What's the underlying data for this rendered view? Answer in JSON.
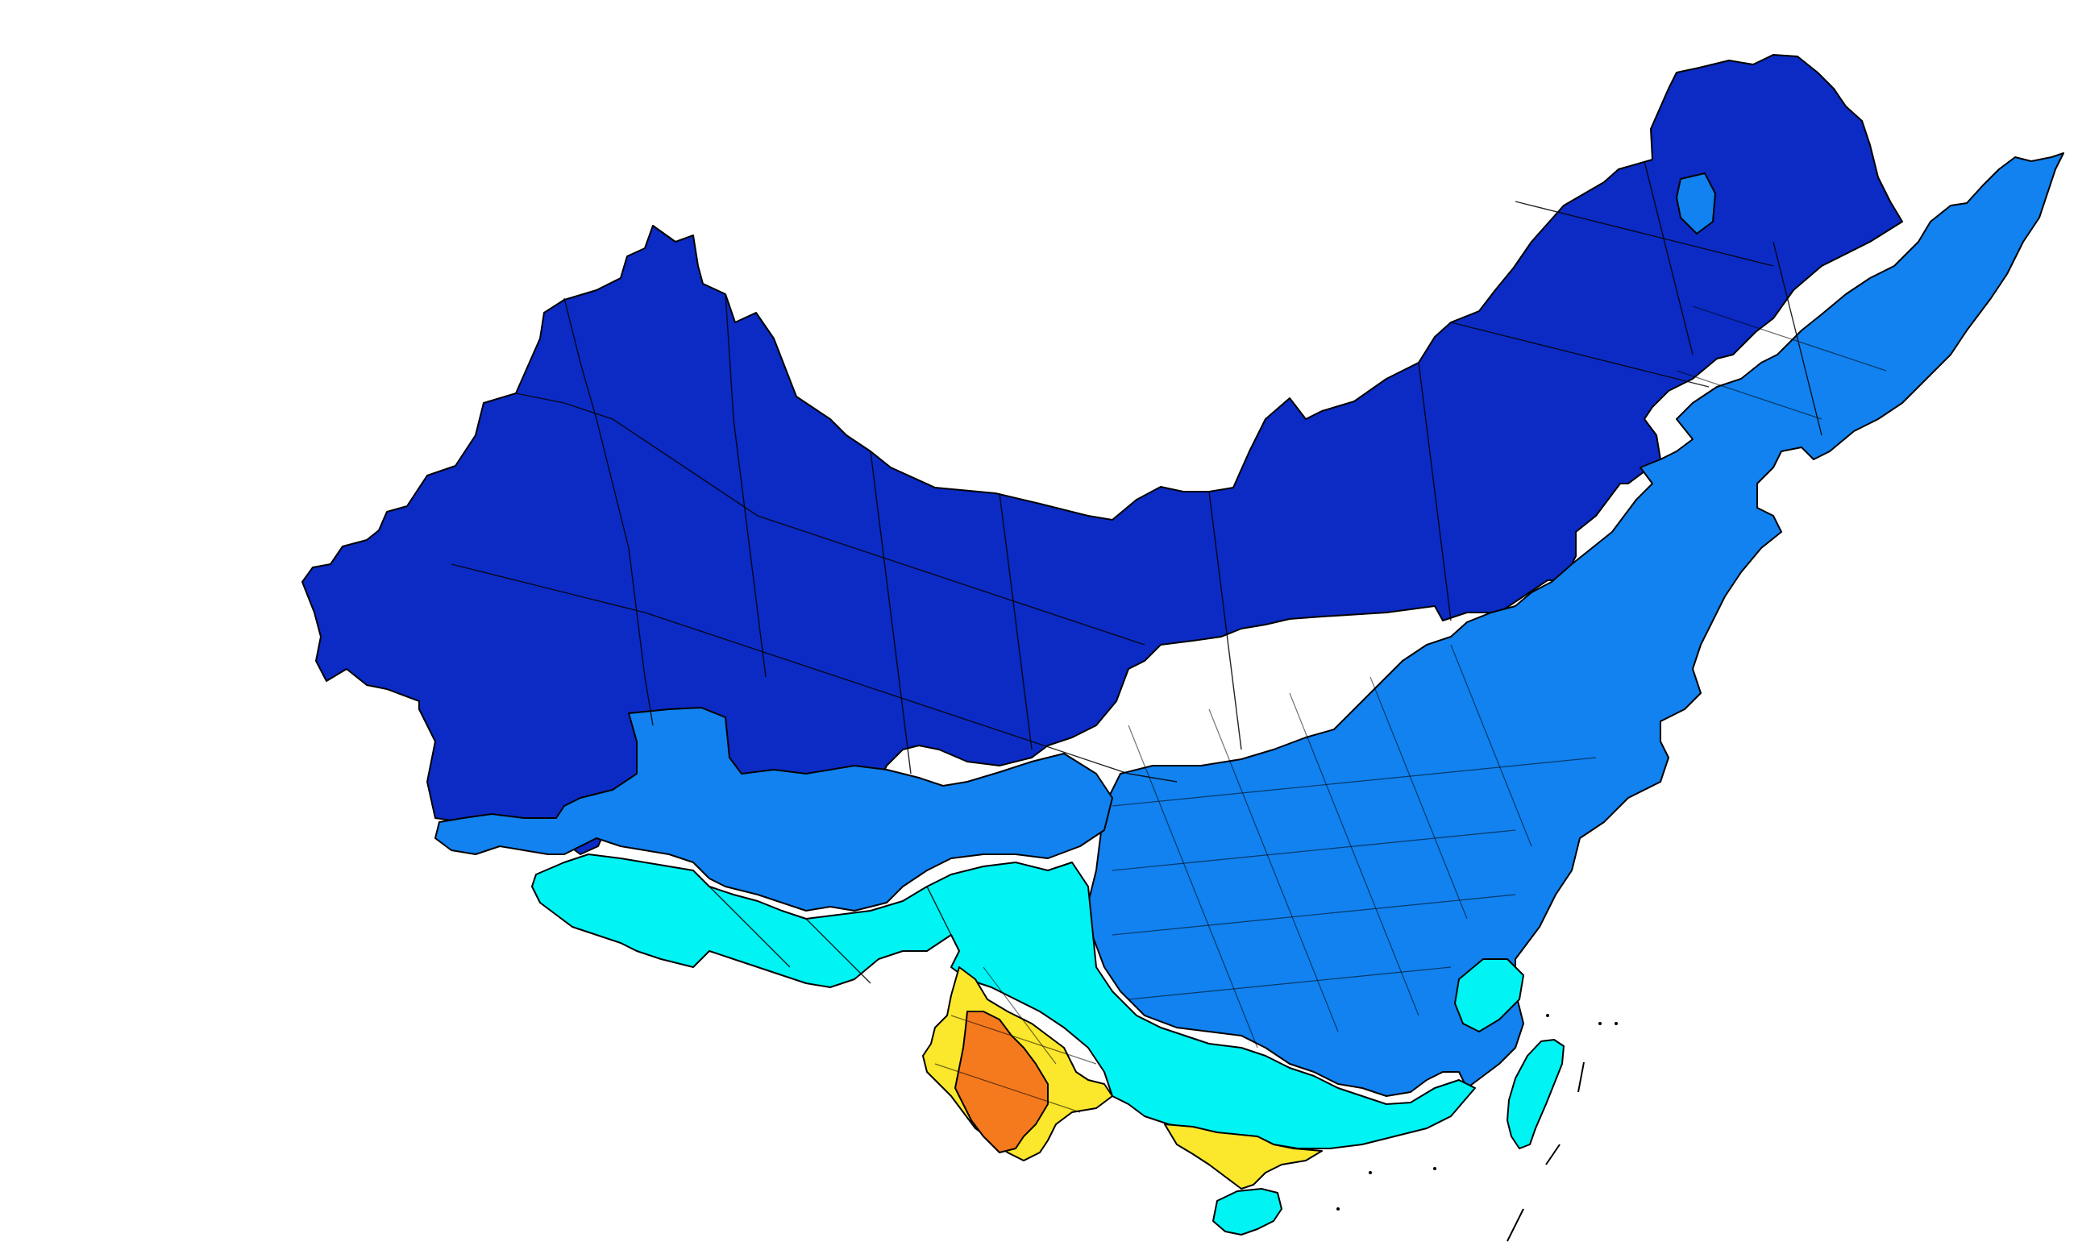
{
  "map": {
    "classes": [
      {
        "key": "class-1",
        "color": "#0b2bc4"
      },
      {
        "key": "class-2",
        "color": "#1182f0"
      },
      {
        "key": "class-3",
        "color": "#00f4f4"
      },
      {
        "key": "class-4",
        "color": "#fbe72c"
      },
      {
        "key": "class-5",
        "color": "#f57a1e"
      }
    ],
    "background_color": "#ffffff",
    "outline_color": "#000000"
  }
}
